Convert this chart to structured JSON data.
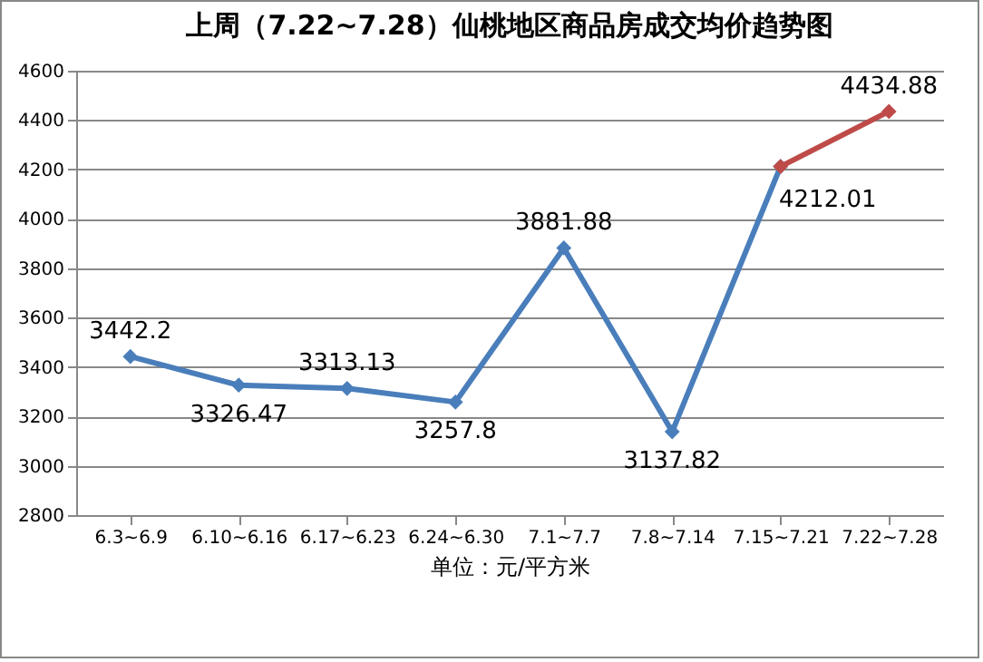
{
  "chart_data": {
    "type": "line",
    "title": "上周（7.22~7.28）仙桃地区商品房成交均价趋势图",
    "xlabel": "单位：元/平方米",
    "categories": [
      "6.3~6.9",
      "6.10~6.16",
      "6.17~6.23",
      "6.24~6.30",
      "7.1~7.7",
      "7.8~7.14",
      "7.15~7.21",
      "7.22~7.28"
    ],
    "series": [
      {
        "color": "#4a7ebb",
        "values": [
          3442.2,
          3326.47,
          3313.13,
          3257.8,
          3881.88,
          3137.82,
          4212.01,
          null
        ],
        "value_labels": [
          "3442.2",
          "3326.47",
          "3313.13",
          "3257.8",
          "3881.88",
          "3137.82",
          "4212.01",
          null
        ]
      },
      {
        "color": "#be4b48",
        "values": [
          null,
          null,
          null,
          null,
          null,
          null,
          4212.01,
          4434.88
        ],
        "value_labels": [
          null,
          null,
          null,
          null,
          null,
          null,
          null,
          "4434.88"
        ]
      }
    ],
    "ylim": [
      2800,
      4600
    ],
    "yticks": [
      2800,
      3000,
      3200,
      3400,
      3600,
      3800,
      4000,
      4200,
      4400,
      4600
    ],
    "grid": "y",
    "marker": "diamond",
    "line_style": "solid"
  }
}
